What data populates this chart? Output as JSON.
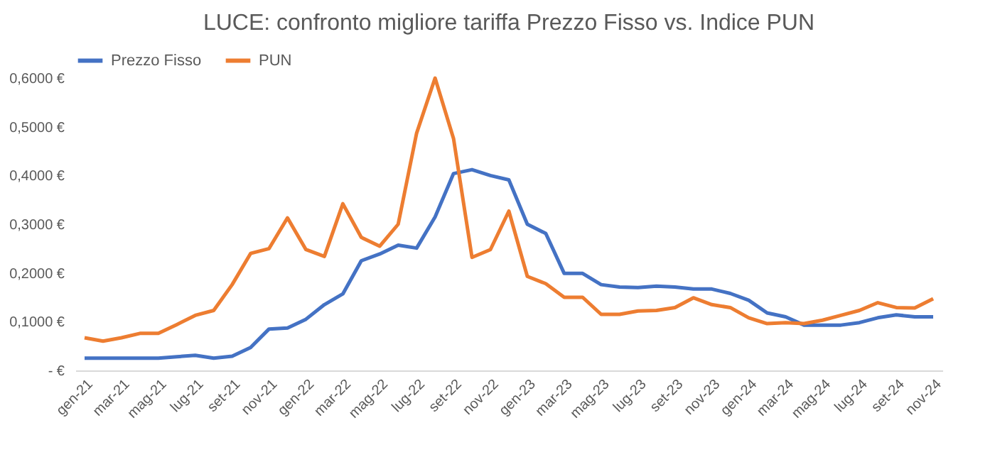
{
  "chart_data": {
    "type": "line",
    "title": "LUCE: confronto migliore tariffa Prezzo Fisso vs. Indice PUN",
    "categories": [
      "gen-21",
      null,
      "mar-21",
      null,
      "mag-21",
      null,
      "lug-21",
      null,
      "set-21",
      null,
      "nov-21",
      null,
      "gen-22",
      null,
      "mar-22",
      null,
      "mag-22",
      null,
      "lug-22",
      null,
      "set-22",
      null,
      "nov-22",
      null,
      "gen-23",
      null,
      "mar-23",
      null,
      "mag-23",
      null,
      "lug-23",
      null,
      "set-23",
      null,
      "nov-23",
      null,
      "gen-24",
      null,
      "mar-24",
      null,
      "mag-24",
      null,
      "lug-24",
      null,
      "set-24",
      null,
      "nov-24"
    ],
    "series": [
      {
        "name": "Prezzo Fisso",
        "color": "#4472c4",
        "values": [
          0.025,
          0.025,
          0.025,
          0.025,
          0.025,
          0.028,
          0.031,
          0.025,
          0.029,
          0.047,
          0.085,
          0.087,
          0.105,
          0.135,
          0.157,
          0.225,
          0.239,
          0.257,
          0.251,
          0.315,
          0.404,
          0.412,
          0.4,
          0.391,
          0.3,
          0.281,
          0.199,
          0.199,
          0.176,
          0.171,
          0.17,
          0.173,
          0.171,
          0.167,
          0.167,
          0.158,
          0.144,
          0.118,
          0.11,
          0.093,
          0.093,
          0.093,
          0.098,
          0.108,
          0.114,
          0.11,
          0.11
        ]
      },
      {
        "name": "PUN",
        "color": "#ed7d31",
        "values": [
          0.067,
          0.06,
          0.067,
          0.076,
          0.076,
          0.094,
          0.113,
          0.123,
          0.176,
          0.24,
          0.25,
          0.313,
          0.248,
          0.234,
          0.342,
          0.273,
          0.255,
          0.3,
          0.487,
          0.6,
          0.476,
          0.232,
          0.248,
          0.327,
          0.193,
          0.178,
          0.15,
          0.15,
          0.115,
          0.115,
          0.122,
          0.123,
          0.129,
          0.149,
          0.135,
          0.129,
          0.108,
          0.096,
          0.098,
          0.096,
          0.103,
          0.113,
          0.123,
          0.139,
          0.129,
          0.128,
          0.147
        ]
      }
    ],
    "ylim": [
      0,
      0.6
    ],
    "yticks": [
      {
        "value": 0,
        "label": "-   €"
      },
      {
        "value": 0.1,
        "label": "0,1000 €"
      },
      {
        "value": 0.2,
        "label": "0,2000 €"
      },
      {
        "value": 0.3,
        "label": "0,3000 €"
      },
      {
        "value": 0.4,
        "label": "0,4000 €"
      },
      {
        "value": 0.5,
        "label": "0,5000 €"
      },
      {
        "value": 0.6,
        "label": "0,6000 €"
      }
    ],
    "grid": false,
    "legend": "top",
    "marker": "none",
    "line_style": "solid"
  }
}
